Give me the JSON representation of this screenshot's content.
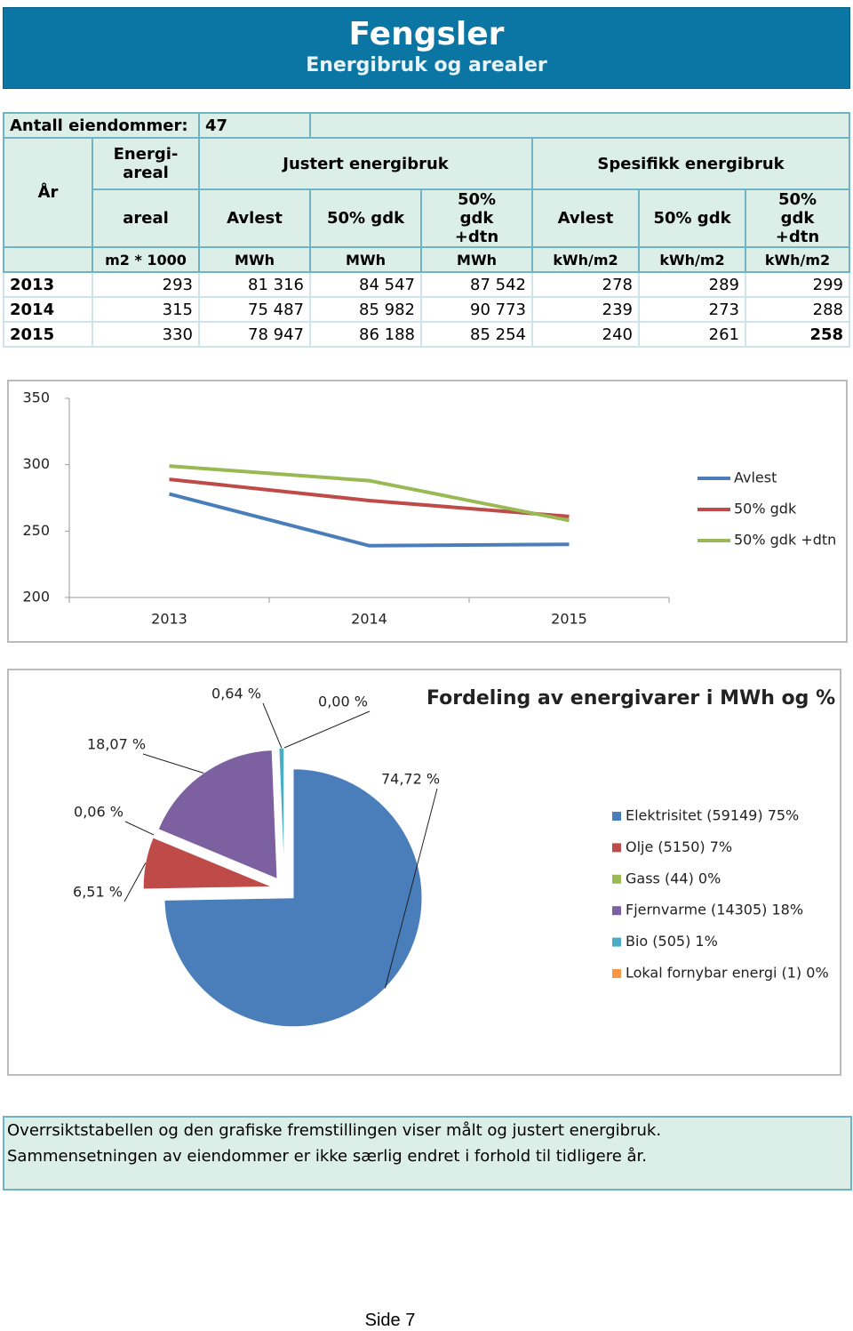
{
  "header": {
    "title": "Fengsler",
    "subtitle": "Energibruk og arealer"
  },
  "table": {
    "count_label": "Antall eiendommer:",
    "count": 47,
    "header_top": [
      "År",
      "Energi-areal",
      "Justert energibruk",
      "Spesifikk energibruk"
    ],
    "header_sub": [
      "areal",
      "Avlest",
      "50% gdk",
      "50% gdk +dtn",
      "Avlest",
      "50% gdk",
      "50% gdk +dtn"
    ],
    "units": [
      "m2 * 1000",
      "MWh",
      "MWh",
      "MWh",
      "kWh/m2",
      "kWh/m2",
      "kWh/m2"
    ],
    "rows": [
      [
        "2013",
        "293",
        "81 316",
        "84 547",
        "87 542",
        "278",
        "289",
        "299"
      ],
      [
        "2014",
        "315",
        "75 487",
        "85 982",
        "90 773",
        "239",
        "273",
        "288"
      ],
      [
        "2015",
        "330",
        "78 947",
        "86 188",
        "85 254",
        "240",
        "261",
        "258"
      ]
    ]
  },
  "chart_data": [
    {
      "type": "line",
      "categories": [
        "2013",
        "2014",
        "2015"
      ],
      "series": [
        {
          "name": "Avlest",
          "color": "#4a7ebb",
          "values": [
            278,
            239,
            240
          ]
        },
        {
          "name": "50% gdk",
          "color": "#be4b48",
          "values": [
            289,
            273,
            261
          ]
        },
        {
          "name": "50% gdk +dtn",
          "color": "#98b954",
          "values": [
            299,
            288,
            258
          ]
        }
      ],
      "ylim": [
        200,
        350
      ],
      "yticks": [
        200,
        250,
        300,
        350
      ],
      "grid": false,
      "legend": "right"
    },
    {
      "type": "pie",
      "title": "Fordeling av energivarer  i MWh og %",
      "categories": [
        "Elektrisitet (59149) 75%",
        "Olje (5150) 7%",
        "Gass (44) 0%",
        "Fjernvarme (14305) 18%",
        "Bio (505) 1%",
        "Lokal fornybar energi (1) 0%"
      ],
      "values": [
        74.72,
        6.51,
        0.06,
        18.07,
        0.64,
        0.0
      ],
      "value_labels": [
        "74,72 %",
        "6,51 %",
        "0,06 %",
        "18,07 %",
        "0,64 %",
        "0,00 %"
      ],
      "colors": [
        "#4a7ebb",
        "#be4b48",
        "#98b954",
        "#7d60a0",
        "#4bacc6",
        "#f79646"
      ],
      "legend": "right"
    }
  ],
  "note": [
    "Overrsiktstabellen og den grafiske fremstillingen viser målt og justert energibruk.",
    "Sammensetningen av eiendommer er ikke særlig endret i forhold til tidligere år."
  ],
  "page_number": "Side 7"
}
